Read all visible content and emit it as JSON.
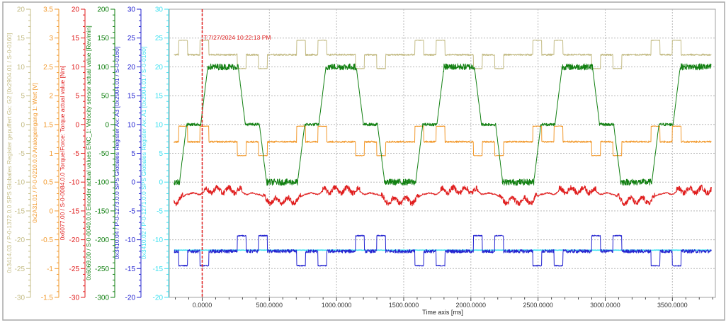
{
  "chart_data": {
    "type": "line",
    "xlabel": "Time axis [ms]",
    "xlim": [
      -245,
      3820
    ],
    "xticks": [
      0,
      500,
      1000,
      1500,
      2000,
      2500,
      3000,
      3500
    ],
    "xtick_labels": [
      "0.0000",
      "500.0000",
      "1000.0000",
      "1500.0000",
      "2000.0000",
      "2500.0000",
      "3000.0000",
      "3500.0000"
    ],
    "grid": true,
    "cursor": {
      "x": 0,
      "label": "T:7/27/2024 10:22:13 PM",
      "color": "#e02020"
    },
    "axes": [
      {
        "id": "tan",
        "label": "0x3414.03 / P-0-1372.0.0 SPS Globales Register gepuffert Gx: G2 [0x2904.01 / S-0-0160]",
        "color": "#c4bc86",
        "min": -30,
        "max": 20,
        "step": 5
      },
      {
        "id": "orange",
        "label": "0x2A31.01 / P-0-0210.0.0 Analogeingang 1: Wert [V]",
        "color": "#f29a2e",
        "min": -1.5,
        "max": 3.5,
        "step": 0.5
      },
      {
        "id": "red",
        "label": "0x6077.00 / S-0-0084.0.0 Torque/Force: Torque actual value [Nm]",
        "color": "#e01e1e",
        "min": -30,
        "max": 20,
        "step": 5
      },
      {
        "id": "green",
        "label": "0x6069.00 / S-0-0040.0.0 Encoder actual values ENC_1: Velocity sensor actual value [Rev/min]",
        "color": "#128012",
        "min": -300,
        "max": 200,
        "step": 50
      },
      {
        "id": "blue",
        "label": "0x3410.04 / P-0-1273.0.0 SPS Globales Register Ax: A3 [0x2904.01 / S-0-0160]",
        "color": "#2424d0",
        "min": -20,
        "max": 30,
        "step": 5
      },
      {
        "id": "cyan",
        "label": "0x3410.02 / P-0-1271.0.0 SPS Globales Register Ax: A1 [0x2904.01 / S-0-0160]",
        "color": "#3ee0f0",
        "min": -20,
        "max": 30,
        "step": 5
      }
    ],
    "series": [
      {
        "axis": "green",
        "noise": "high",
        "points": [
          [
            -210,
            -100
          ],
          [
            -169,
            -100
          ],
          [
            -116,
            0
          ],
          [
            -11,
            0
          ],
          [
            42,
            100
          ],
          [
            268,
            100
          ],
          [
            321,
            0
          ],
          [
            426,
            0
          ],
          [
            479,
            -100
          ],
          [
            710,
            -100
          ],
          [
            763,
            0
          ],
          [
            868,
            0
          ],
          [
            921,
            100
          ],
          [
            1147,
            100
          ],
          [
            1200,
            0
          ],
          [
            1305,
            0
          ],
          [
            1358,
            -100
          ],
          [
            1589,
            -100
          ],
          [
            1642,
            0
          ],
          [
            1747,
            0
          ],
          [
            1800,
            100
          ],
          [
            2026,
            100
          ],
          [
            2079,
            0
          ],
          [
            2184,
            0
          ],
          [
            2237,
            -100
          ],
          [
            2468,
            -100
          ],
          [
            2521,
            0
          ],
          [
            2626,
            0
          ],
          [
            2679,
            100
          ],
          [
            2905,
            100
          ],
          [
            2958,
            0
          ],
          [
            3063,
            0
          ],
          [
            3116,
            -100
          ],
          [
            3347,
            -100
          ],
          [
            3400,
            0
          ],
          [
            3505,
            0
          ],
          [
            3558,
            100
          ],
          [
            3790,
            100
          ]
        ]
      },
      {
        "axis": "tan",
        "baseline": 12.1,
        "accel_level": 14.6,
        "decel_level": 9.7
      },
      {
        "axis": "orange",
        "baseline": 1.2,
        "accel_level": 1.47,
        "decel_level": 0.96
      },
      {
        "axis": "red",
        "level_at_plus100": -11.4,
        "level_at_0": -12.0,
        "level_at_minus100": -13.2
      },
      {
        "axis": "blue",
        "baseline": -12.0,
        "accel_level": -14.5,
        "decel_level": -9.3
      },
      {
        "axis": "cyan",
        "baseline": -11.8
      }
    ]
  }
}
